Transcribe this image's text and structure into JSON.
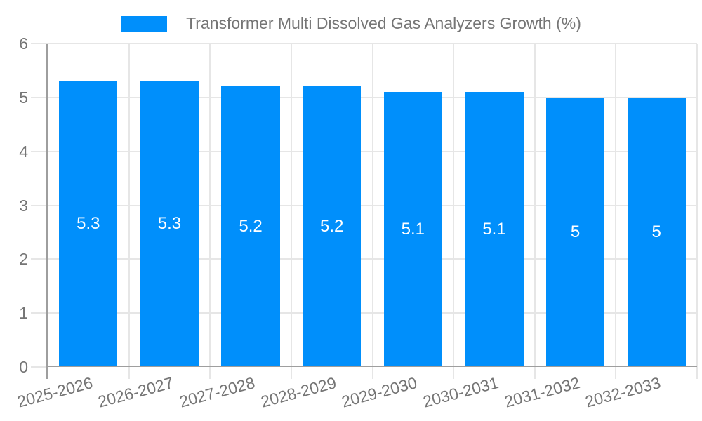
{
  "legend": {
    "label": "Transformer Multi Dissolved Gas Analyzers Growth (%)",
    "swatch_color": "#008FFB"
  },
  "chart_data": {
    "type": "bar",
    "title": "Transformer Multi Dissolved Gas Analyzers Growth (%)",
    "categories": [
      "2025-2026",
      "2026-2027",
      "2027-2028",
      "2028-2029",
      "2029-2030",
      "2030-2031",
      "2031-2032",
      "2032-2033"
    ],
    "series": [
      {
        "name": "Transformer Multi Dissolved Gas Analyzers Growth (%)",
        "values": [
          5.3,
          5.3,
          5.2,
          5.2,
          5.1,
          5.1,
          5,
          5
        ]
      }
    ],
    "value_labels": [
      "5.3",
      "5.3",
      "5.2",
      "5.2",
      "5.1",
      "5.1",
      "5",
      "5"
    ],
    "xlabel": "",
    "ylabel": "",
    "ylim": [
      0,
      6
    ],
    "yticks": [
      0,
      1,
      2,
      3,
      4,
      5,
      6
    ],
    "grid": true,
    "legend_position": "top",
    "x_label_rotation_deg": -15,
    "bar_color": "#008FFB",
    "value_label_color": "#FFFFFF",
    "axis_color": "#9E9E9E",
    "grid_color": "#E6E6E6",
    "text_color": "#757575"
  }
}
